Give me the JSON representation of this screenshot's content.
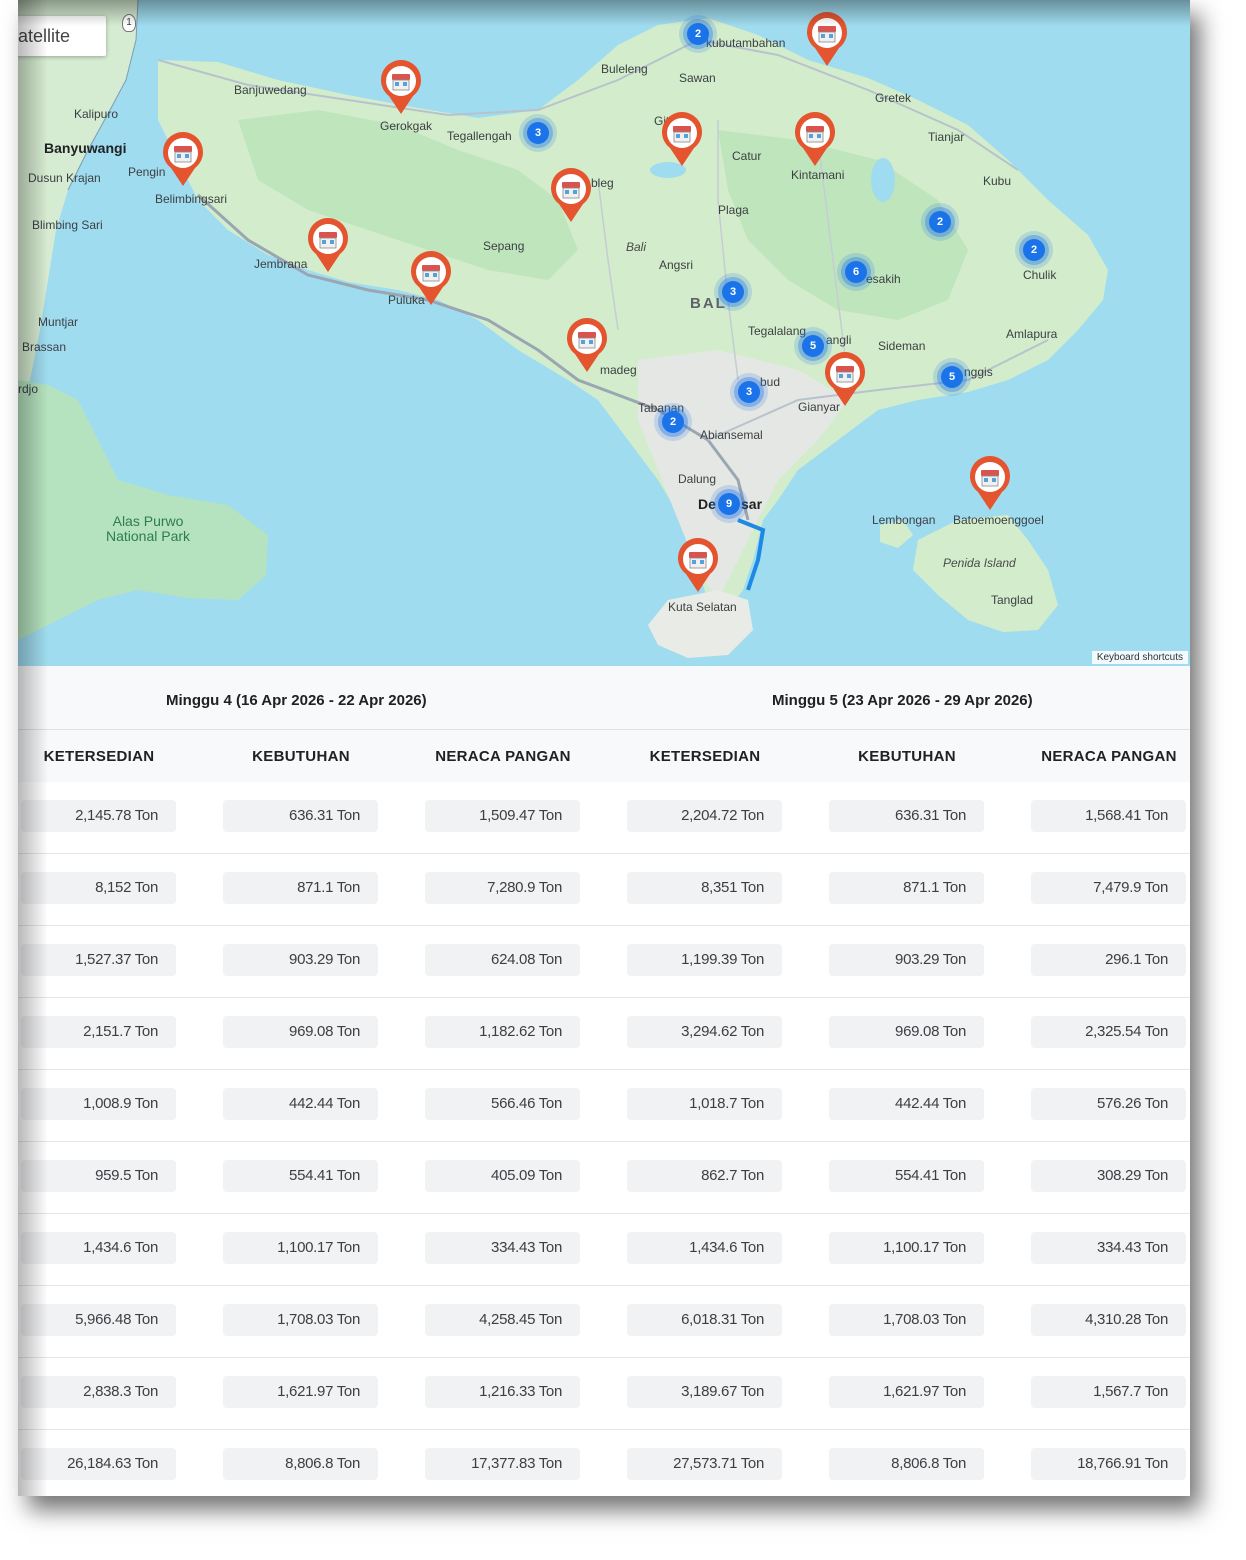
{
  "map": {
    "satellite_label": "atellite",
    "keyboard_shortcuts": "Keyboard shortcuts",
    "labels": {
      "banyuwangi": "Banyuwangi",
      "kalipuro": "Kalipuro",
      "dusun_krajan": "Dusun Krajan",
      "blimbing_sari": "Blimbing Sari",
      "muntjar": "Muntjar",
      "brassan": "Brassan",
      "rdjo": "rdjo",
      "alas_purwo_1": "Alas Purwo",
      "alas_purwo_2": "National Park",
      "banjuwedang": "Banjuwedang",
      "gerokgak": "Gerokgak",
      "pengin": "Pengin",
      "belimbingsari": "Belimbingsari",
      "jembrana": "Jembrana",
      "puluka": "Puluka",
      "tegallengah": "Tegallengah",
      "buleleng": "Buleleng",
      "sawan": "Sawan",
      "kubutambahan": "kubutambahan",
      "gretek": "Gretek",
      "tianjar": "Tianjar",
      "kubu": "Kubu",
      "catur": "Catur",
      "kintamani": "Kintamani",
      "plaga": "Plaga",
      "bali_italic": "Bali",
      "angsri": "Angsri",
      "sepang": "Sepang",
      "bleg": "bleg",
      "git": "Git",
      "bali_region": "BAL",
      "chulik": "Chulik",
      "amlapura": "Amlapura",
      "sesakih": "esakih",
      "tegalalang": "Tegalalang",
      "angli": "angli",
      "sideman": "Sideman",
      "nggis": "nggis",
      "ubud": "bud",
      "gianyar": "Gianyar",
      "tabanan": "Tabanan",
      "abiansemal": "Abiansemal",
      "madeg": "madeg",
      "dalung": "Dalung",
      "denpasar_1": "De",
      "denpasar_2": "sar",
      "kuta_selatan": "Kuta Selatan",
      "lembongan": "Lembongan",
      "batoemoenggoel": "Batoemoenggoel",
      "penida_island": "Penida Island",
      "tanglad": "Tanglad",
      "road_shield": "1"
    },
    "clusters": [
      {
        "count": "2"
      },
      {
        "count": "3"
      },
      {
        "count": "3"
      },
      {
        "count": "6"
      },
      {
        "count": "2"
      },
      {
        "count": "2"
      },
      {
        "count": "5"
      },
      {
        "count": "3"
      },
      {
        "count": "5"
      },
      {
        "count": "2"
      },
      {
        "count": "9"
      }
    ]
  },
  "table": {
    "weeks": [
      {
        "title": "Minggu 4 (16 Apr 2026 - 22 Apr 2026)"
      },
      {
        "title": "Minggu 5 (23 Apr 2026 - 29 Apr 2026)"
      }
    ],
    "columns": [
      "KETERSEDIAN",
      "KEBUTUHAN",
      "NERACA PANGAN",
      "KETERSEDIAN",
      "KEBUTUHAN",
      "NERACA PANGAN"
    ],
    "rows": [
      [
        "2,145.78 Ton",
        "636.31 Ton",
        "1,509.47 Ton",
        "2,204.72 Ton",
        "636.31 Ton",
        "1,568.41 Ton"
      ],
      [
        "8,152 Ton",
        "871.1 Ton",
        "7,280.9 Ton",
        "8,351 Ton",
        "871.1 Ton",
        "7,479.9 Ton"
      ],
      [
        "1,527.37 Ton",
        "903.29 Ton",
        "624.08 Ton",
        "1,199.39 Ton",
        "903.29 Ton",
        "296.1 Ton"
      ],
      [
        "2,151.7 Ton",
        "969.08 Ton",
        "1,182.62 Ton",
        "3,294.62 Ton",
        "969.08 Ton",
        "2,325.54 Ton"
      ],
      [
        "1,008.9 Ton",
        "442.44 Ton",
        "566.46 Ton",
        "1,018.7 Ton",
        "442.44 Ton",
        "576.26 Ton"
      ],
      [
        "959.5 Ton",
        "554.41 Ton",
        "405.09 Ton",
        "862.7 Ton",
        "554.41 Ton",
        "308.29 Ton"
      ],
      [
        "1,434.6 Ton",
        "1,100.17 Ton",
        "334.43 Ton",
        "1,434.6 Ton",
        "1,100.17 Ton",
        "334.43 Ton"
      ],
      [
        "5,966.48 Ton",
        "1,708.03 Ton",
        "4,258.45 Ton",
        "6,018.31 Ton",
        "1,708.03 Ton",
        "4,310.28 Ton"
      ],
      [
        "2,838.3 Ton",
        "1,621.97 Ton",
        "1,216.33 Ton",
        "3,189.67 Ton",
        "1,621.97 Ton",
        "1,567.7 Ton"
      ],
      [
        "26,184.63 Ton",
        "8,806.8 Ton",
        "17,377.83 Ton",
        "27,573.71 Ton",
        "8,806.8 Ton",
        "18,766.91 Ton"
      ]
    ]
  }
}
